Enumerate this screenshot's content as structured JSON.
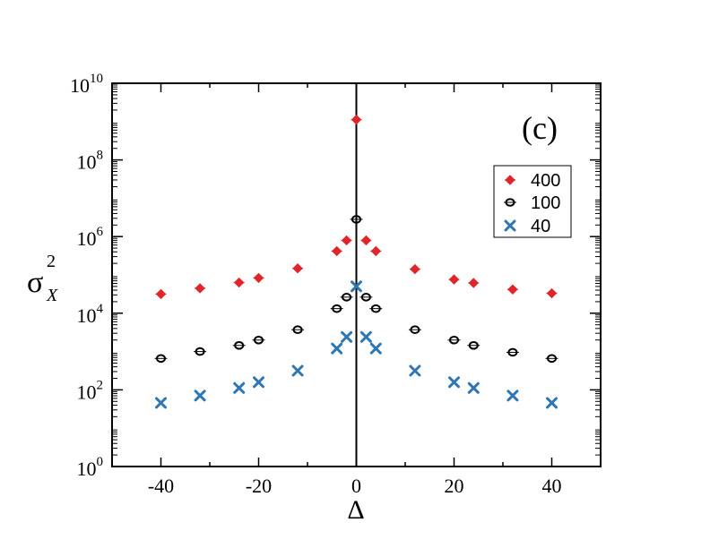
{
  "chart_data": {
    "type": "scatter",
    "panel_label": "(c)",
    "xlabel": "Δ",
    "ylabel": {
      "base": "σ",
      "subscript": "X",
      "superscript": "2"
    },
    "xlim": [
      -50,
      50
    ],
    "ylim_log10": [
      0,
      10
    ],
    "y_scale": "log",
    "x_ticks": [
      -40,
      -20,
      0,
      20,
      40
    ],
    "x_tick_labels": [
      "-40",
      "-20",
      "0",
      "20",
      "40"
    ],
    "y_ticks_exp": [
      0,
      2,
      4,
      6,
      8,
      10
    ],
    "y_tick_base": "10",
    "y_tick_exponents": [
      "0",
      "2",
      "4",
      "6",
      "8",
      "10"
    ],
    "vertical_line_at_x": 0,
    "legend_position": "top-right",
    "colors": {
      "s400": "#e0252b",
      "s100": "#000000",
      "s40": "#2e77b4"
    },
    "series": [
      {
        "name": "400",
        "marker": "diamond",
        "color": "#e0252b",
        "x": [
          -40,
          -32,
          -24,
          -20,
          -12,
          -4,
          -2,
          0,
          2,
          4,
          12,
          20,
          24,
          32,
          40
        ],
        "y_log10": [
          4.5,
          4.65,
          4.8,
          4.92,
          5.17,
          5.62,
          5.9,
          9.05,
          5.9,
          5.62,
          5.15,
          4.88,
          4.79,
          4.62,
          4.52
        ]
      },
      {
        "name": "100",
        "marker": "circle",
        "color": "#000000",
        "x": [
          -40,
          -32,
          -24,
          -20,
          -12,
          -4,
          -2,
          0,
          2,
          4,
          12,
          20,
          24,
          32,
          40
        ],
        "y_log10": [
          2.82,
          3.0,
          3.16,
          3.3,
          3.57,
          4.12,
          4.42,
          6.45,
          4.42,
          4.12,
          3.57,
          3.3,
          3.16,
          2.98,
          2.82
        ]
      },
      {
        "name": "40",
        "marker": "x",
        "color": "#2e77b4",
        "x": [
          -40,
          -32,
          -24,
          -20,
          -12,
          -4,
          -2,
          0,
          2,
          4,
          12,
          20,
          24,
          32,
          40
        ],
        "y_log10": [
          1.66,
          1.85,
          2.05,
          2.2,
          2.5,
          3.08,
          3.38,
          4.7,
          3.38,
          3.08,
          2.5,
          2.2,
          2.05,
          1.85,
          1.66
        ]
      }
    ]
  }
}
